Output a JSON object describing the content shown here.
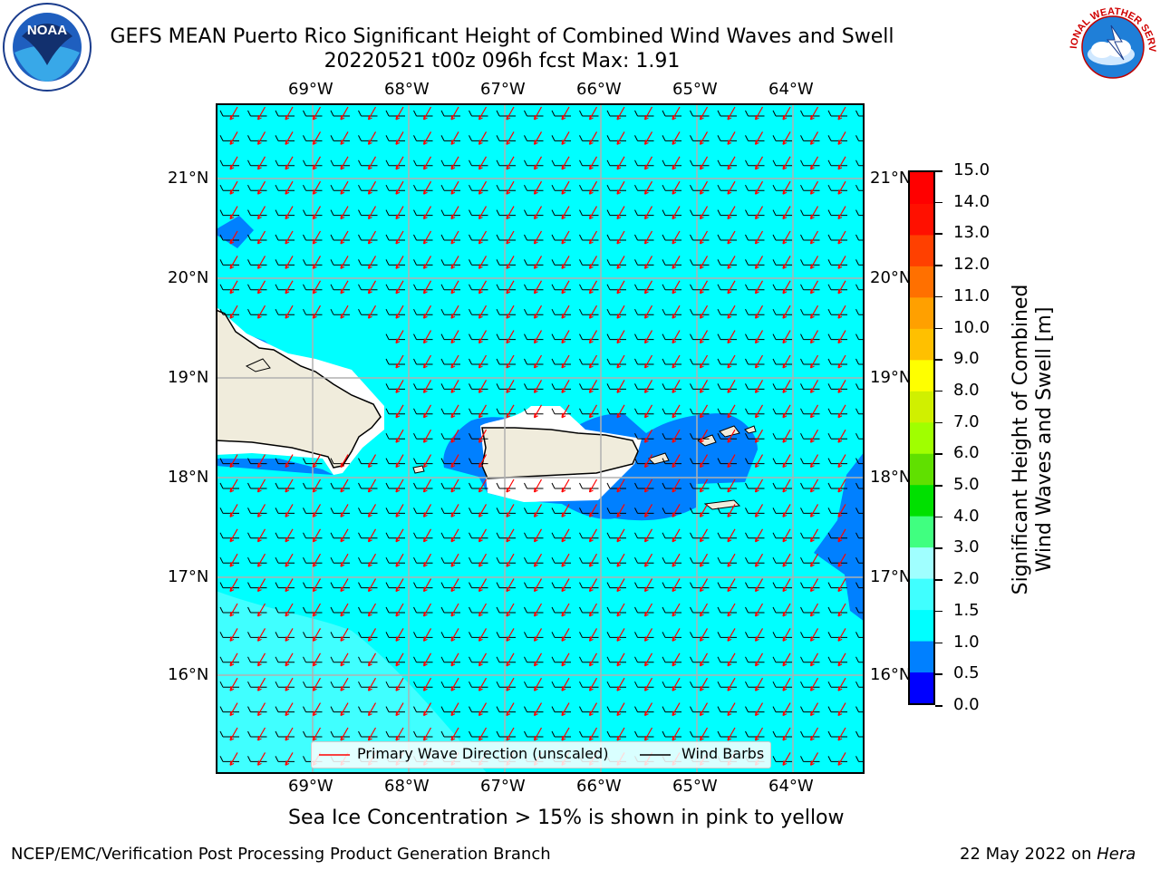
{
  "title_line1": "GEFS MEAN Puerto Rico Significant Height of Combined Wind Waves and Swell",
  "title_line2": "20220521 t00z 096h fcst   Max: 1.91",
  "lon_labels": [
    "69°W",
    "68°W",
    "67°W",
    "66°W",
    "65°W",
    "64°W"
  ],
  "lat_labels": [
    "21°N",
    "20°N",
    "19°N",
    "18°N",
    "17°N",
    "16°N"
  ],
  "colorbar": {
    "label_line1": "Significant Height of Combined",
    "label_line2": "Wind Waves and Swell [m]",
    "ticks": [
      "0.0",
      "0.5",
      "1.0",
      "1.5",
      "2.0",
      "3.0",
      "4.0",
      "5.0",
      "6.0",
      "7.0",
      "8.0",
      "9.0",
      "10.0",
      "11.0",
      "12.0",
      "13.0",
      "14.0",
      "15.0"
    ],
    "colors": [
      "#0000ff",
      "#0080ff",
      "#00ffff",
      "#40ffff",
      "#a0ffff",
      "#40ff80",
      "#00e000",
      "#60e000",
      "#a0ff00",
      "#d0f000",
      "#ffff00",
      "#ffc000",
      "#ffa000",
      "#ff7000",
      "#ff4000",
      "#ff1000",
      "#ff0000"
    ]
  },
  "legend": {
    "wave_label": "Primary Wave Direction (unscaled)",
    "wind_label": "Wind Barbs",
    "wave_color": "#ff0000",
    "wind_color": "#000000"
  },
  "sea_ice_note": "Sea Ice Concentration > 15% is shown in pink to yellow",
  "footer_left": "NCEP/EMC/Verification Post Processing Product Generation Branch",
  "footer_date": "22 May 2022 on ",
  "footer_host": "Hera",
  "logos": {
    "noaa_text": "NOAA",
    "nws_text": "NATIONAL WEATHER SERVICE"
  },
  "icons": {
    "noaa": "noaa-logo-icon",
    "nws": "nws-logo-icon"
  },
  "map_colors": {
    "land": "#f0ecdc",
    "coast": "#000000",
    "sea_main": "#00ffff",
    "sea_low": "#0080ff",
    "sea_high": "#40ffff",
    "grid": "#b0b0b0"
  }
}
